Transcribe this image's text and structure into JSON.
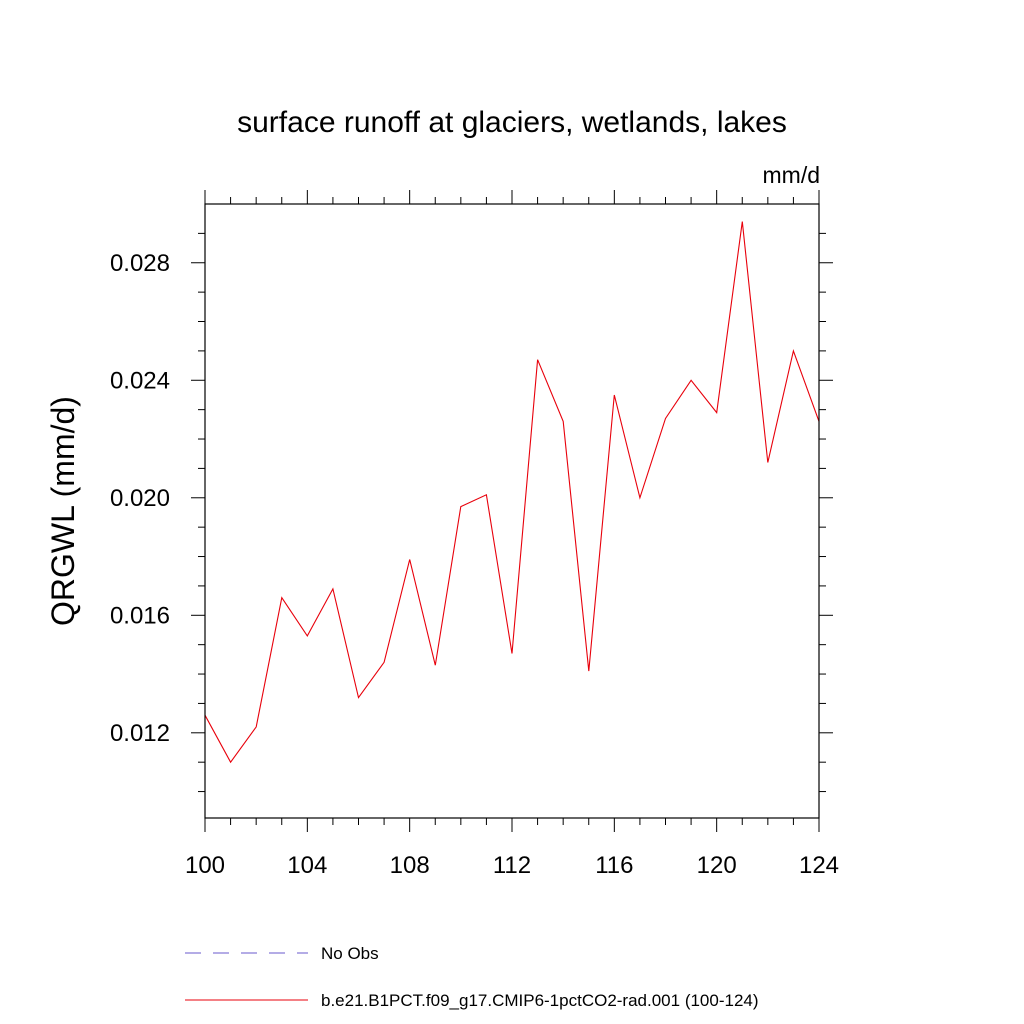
{
  "chart_data": {
    "type": "line",
    "title": "surface runoff at glaciers, wetlands, lakes",
    "units": "mm/d",
    "ylabel": "QRGWL  (mm/d)",
    "xlabel": "",
    "xlim": [
      100,
      124
    ],
    "ylim": [
      0.0091,
      0.03
    ],
    "xticks": [
      100,
      104,
      108,
      112,
      116,
      120,
      124
    ],
    "xtick_labels": [
      "100",
      "104",
      "108",
      "112",
      "116",
      "120",
      "124"
    ],
    "yticks": [
      0.012,
      0.016,
      0.02,
      0.024,
      0.028
    ],
    "ytick_labels": [
      "0.012",
      "0.016",
      "0.020",
      "0.024",
      "0.028"
    ],
    "grid": false,
    "legend_position": "bottom",
    "series": [
      {
        "name": "b.e21.B1PCT.f09_g17.CMIP6-1pctCO2-rad.001 (100-124)",
        "color": "#e8000b",
        "dash": "solid",
        "x": [
          100,
          101,
          102,
          103,
          104,
          105,
          106,
          107,
          108,
          109,
          110,
          111,
          112,
          113,
          114,
          115,
          116,
          117,
          118,
          119,
          120,
          121,
          122,
          123,
          124
        ],
        "y": [
          0.0126,
          0.011,
          0.0122,
          0.0166,
          0.0153,
          0.0169,
          0.0132,
          0.0144,
          0.0179,
          0.0143,
          0.0197,
          0.0201,
          0.0147,
          0.0247,
          0.0226,
          0.0141,
          0.0235,
          0.02,
          0.0227,
          0.024,
          0.0229,
          0.0294,
          0.0212,
          0.025,
          0.0226
        ]
      }
    ],
    "legend": [
      {
        "label": "No Obs",
        "color": "#6a5acd",
        "dash": "dashed"
      },
      {
        "label": "b.e21.B1PCT.f09_g17.CMIP6-1pctCO2-rad.001 (100-124)",
        "color": "#e8000b",
        "dash": "solid"
      }
    ]
  }
}
